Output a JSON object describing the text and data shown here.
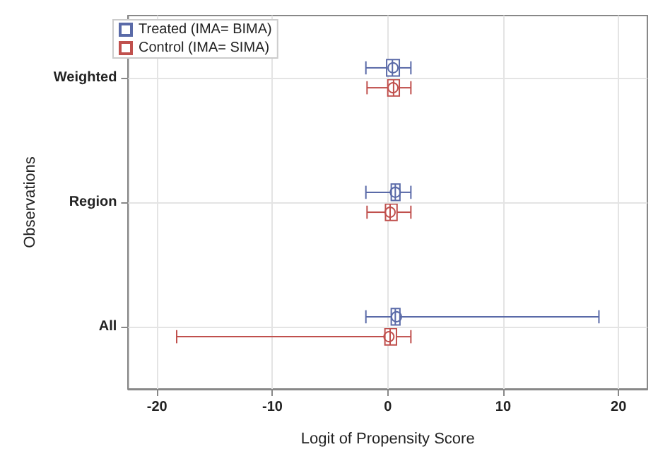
{
  "chart_data": {
    "type": "box",
    "orientation": "horizontal",
    "xlabel": "Logit of Propensity Score",
    "ylabel": "Observations",
    "categories": [
      "Weighted",
      "Region",
      "All"
    ],
    "series": [
      {
        "name": "Treated (IMA= BIMA)",
        "color": "#5a6aa8",
        "boxes": [
          {
            "low": -1.9,
            "q1": -0.1,
            "median": 0.4,
            "q3": 1.0,
            "high": 2.0,
            "mean": 0.45
          },
          {
            "low": -1.9,
            "q1": 0.3,
            "median": 0.65,
            "q3": 1.05,
            "high": 2.0,
            "mean": 0.65
          },
          {
            "low": -1.9,
            "q1": 0.3,
            "median": 0.65,
            "q3": 1.05,
            "high": 18.3,
            "mean": 0.75
          }
        ]
      },
      {
        "name": "Control (IMA= SIMA)",
        "color": "#c0504d",
        "boxes": [
          {
            "low": -1.8,
            "q1": 0.0,
            "median": 0.5,
            "q3": 1.0,
            "high": 2.0,
            "mean": 0.45
          },
          {
            "low": -1.8,
            "q1": -0.2,
            "median": 0.2,
            "q3": 0.8,
            "high": 2.0,
            "mean": 0.2
          },
          {
            "low": -18.3,
            "q1": -0.25,
            "median": 0.2,
            "q3": 0.75,
            "high": 2.0,
            "mean": 0.1
          }
        ]
      }
    ],
    "xlim": [
      -22.5,
      22.5
    ],
    "xticks": [
      -20,
      -10,
      0,
      10,
      20
    ],
    "grid": true,
    "legend": "top left"
  }
}
